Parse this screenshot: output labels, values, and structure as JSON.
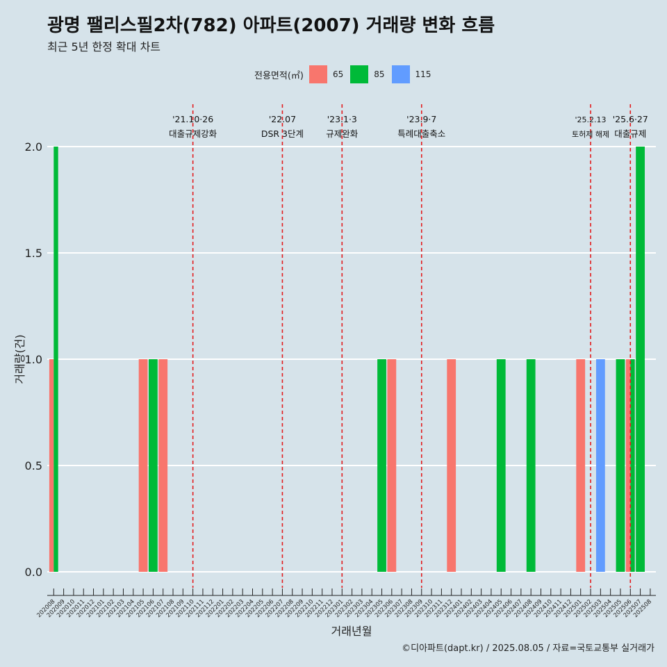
{
  "title": "광명 팰리스필2차(782) 아파트(2007) 거래량 변화 흐름",
  "subtitle": "최근 5년 한정 확대 차트",
  "legend": {
    "title": "전용면적(㎡)",
    "items": [
      {
        "label": "65",
        "color": "#f8766d"
      },
      {
        "label": "85",
        "color": "#00ba38"
      },
      {
        "label": "115",
        "color": "#619cff"
      }
    ]
  },
  "caption": "©디아파트(dapt.kr) / 2025.08.05 / 자료=국토교통부 실거래가",
  "chart_data": {
    "type": "bar",
    "xlabel": "거래년월",
    "ylabel": "거래량(건)",
    "ylim": [
      0,
      2
    ],
    "yticks": [
      "0.0",
      "0.5",
      "1.0",
      "1.5",
      "2.0"
    ],
    "grid": "horizontal",
    "legend_position": "top",
    "categories": [
      "202008",
      "202009",
      "202010",
      "202011",
      "202012",
      "202101",
      "202102",
      "202103",
      "202104",
      "202105",
      "202106",
      "202107",
      "202108",
      "202109",
      "202110",
      "202111",
      "202112",
      "202201",
      "202202",
      "202203",
      "202204",
      "202205",
      "202206",
      "202207",
      "202208",
      "202209",
      "202210",
      "202211",
      "202212",
      "202301",
      "202302",
      "202303",
      "202304",
      "202305",
      "202306",
      "202307",
      "202308",
      "202309",
      "202310",
      "202311",
      "202312",
      "202401",
      "202402",
      "202403",
      "202404",
      "202405",
      "202406",
      "202407",
      "202408",
      "202409",
      "202410",
      "202411",
      "202412",
      "202501",
      "202502",
      "202503",
      "202504",
      "202505",
      "202506",
      "202507",
      "202508"
    ],
    "series": [
      {
        "name": "65",
        "color": "#f8766d",
        "points": [
          {
            "x": "202008",
            "y": 1
          },
          {
            "x": "202105",
            "y": 1
          },
          {
            "x": "202107",
            "y": 1
          },
          {
            "x": "202306",
            "y": 1
          },
          {
            "x": "202312",
            "y": 1
          },
          {
            "x": "202501",
            "y": 1
          },
          {
            "x": "202506",
            "y": 1
          }
        ]
      },
      {
        "name": "85",
        "color": "#00ba38",
        "points": [
          {
            "x": "202008",
            "y": 2
          },
          {
            "x": "202106",
            "y": 1
          },
          {
            "x": "202305",
            "y": 1
          },
          {
            "x": "202405",
            "y": 1
          },
          {
            "x": "202408",
            "y": 1
          },
          {
            "x": "202505",
            "y": 1
          },
          {
            "x": "202506",
            "y": 1
          },
          {
            "x": "202507",
            "y": 2
          }
        ]
      },
      {
        "name": "115",
        "color": "#619cff",
        "points": [
          {
            "x": "202503",
            "y": 1
          }
        ]
      }
    ],
    "events": [
      {
        "at": "202110",
        "date": "'21.10·26",
        "label": "대출규제강화",
        "size": "normal"
      },
      {
        "at": "202207",
        "date": "'22.07",
        "label": "DSR 3단계",
        "size": "normal"
      },
      {
        "at": "202301",
        "date": "'23.1·3",
        "label": "규제완화",
        "size": "normal"
      },
      {
        "at": "202309",
        "date": "'23.9·7",
        "label": "특례대출축소",
        "size": "normal"
      },
      {
        "at": "202502",
        "date": "'25.2.13",
        "label": "토허제 해제",
        "size": "small"
      },
      {
        "at": "202506",
        "date": "'25.6·27",
        "label": "대출규제",
        "size": "normal"
      }
    ]
  }
}
